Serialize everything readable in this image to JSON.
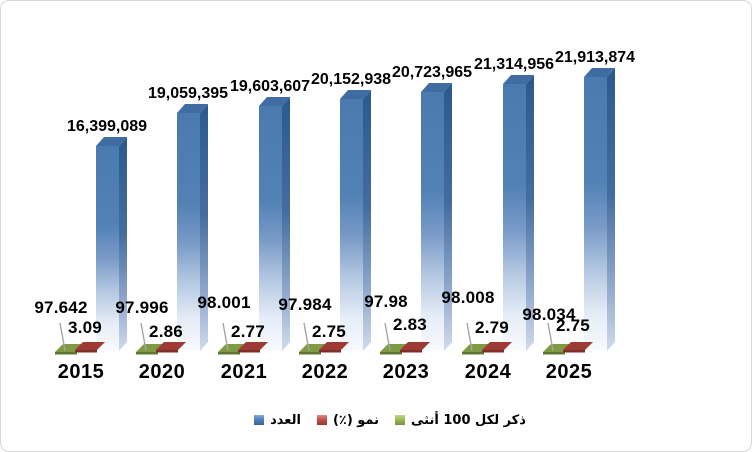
{
  "chart": {
    "background_color": "#FFFFFF",
    "border_color": "#D8D8D8",
    "title": ""
  },
  "chart_data": {
    "type": "bar",
    "subtype": "3d-clustered-column",
    "categories": [
      "2015",
      "2020",
      "2021",
      "2022",
      "2023",
      "2024",
      "2025"
    ],
    "series": [
      {
        "name": "العدد",
        "color": "#4F81BD",
        "values": [
          16399089,
          19059395,
          19603607,
          20152938,
          20723965,
          21314956,
          21913874
        ],
        "labels": [
          "16,399,089",
          "19,059,395",
          "19,603,607",
          "20,152,938",
          "20,723,965",
          "21,314,956",
          "21,913,874"
        ]
      },
      {
        "name": "نمو (٪)",
        "color": "#C0504D",
        "values": [
          3.09,
          2.86,
          2.77,
          2.75,
          2.83,
          2.79,
          2.75
        ],
        "labels": [
          "3.09",
          "2.86",
          "2.77",
          "2.75",
          "2.83",
          "2.79",
          "2.75"
        ]
      },
      {
        "name": "ذكر لكل 100 أنثى",
        "color": "#9BBB59",
        "values": [
          97.642,
          97.996,
          98.001,
          97.984,
          97.98,
          98.008,
          98.034
        ],
        "labels": [
          "97.642",
          "97.996",
          "98.001",
          "97.984",
          "97.98",
          "98.008",
          "98.034"
        ]
      }
    ],
    "title": "",
    "xlabel": "",
    "ylabel": "",
    "ylim": [
      0,
      22000000
    ],
    "grid": false,
    "axes_visible": false,
    "legend_position": "bottom"
  },
  "legend": {
    "items": [
      {
        "label": "العدد",
        "color": "#4F81BD",
        "swatch": "blue-square"
      },
      {
        "label": "نمو (٪)",
        "color": "#C0504D",
        "swatch": "red-square"
      },
      {
        "label": "ذكر لكل 100 أنثى",
        "color": "#9BBB59",
        "swatch": "green-square"
      }
    ]
  },
  "palette": {
    "bar_top_face": "#3F6DA3",
    "bar_side_face": "#2E5B92",
    "bar_front_top": "#4C7BB1",
    "ratio_marker": "#7E9B44",
    "growth_marker": "#9C3A33",
    "leader_line": "#A6A6A6",
    "label_text": "#000000"
  }
}
